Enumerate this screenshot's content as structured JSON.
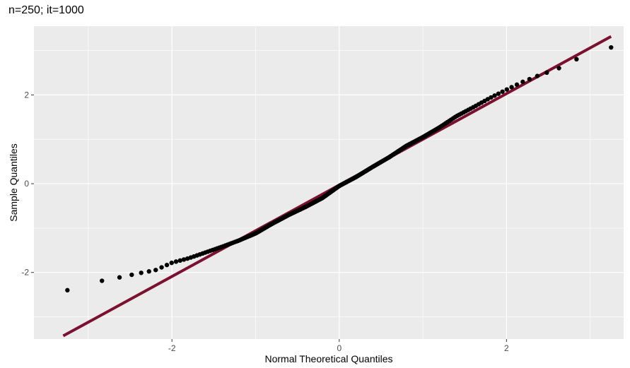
{
  "chart_data": {
    "type": "scatter",
    "title": "n=250; it=1000",
    "xlabel": "Normal Theoretical Quantiles",
    "ylabel": "Sample Quantiles",
    "xlim": [
      -3.65,
      3.4
    ],
    "ylim": [
      -3.5,
      3.55
    ],
    "x_major_ticks": [
      -2,
      0,
      2
    ],
    "y_major_ticks": [
      -2,
      0,
      2
    ],
    "x_minor_ticks": [
      -3,
      -1,
      1,
      3
    ],
    "y_minor_ticks": [
      -3,
      -1,
      1,
      3
    ],
    "x_tick_labels": [
      "-2",
      "0",
      "2"
    ],
    "y_tick_labels": [
      "-2",
      "0",
      "2"
    ],
    "grid": true,
    "reference_line": {
      "intercept": -0.03,
      "slope": 1.03,
      "x_range": [
        -3.3,
        3.25
      ],
      "color": "#7b1030"
    },
    "points_anchor": {
      "x": [
        -3.3,
        -3.0,
        -2.8,
        -2.6,
        -2.4,
        -2.2,
        -2.0,
        -1.8,
        -1.6,
        -1.4,
        -1.2,
        -1.0,
        -0.8,
        -0.6,
        -0.4,
        -0.2,
        0.0,
        0.2,
        0.4,
        0.6,
        0.8,
        1.0,
        1.2,
        1.4,
        1.6,
        1.8,
        2.0,
        2.2,
        2.4,
        2.6,
        2.8,
        3.0,
        3.25
      ],
      "y": [
        -2.4,
        -2.22,
        -2.18,
        -2.1,
        -2.02,
        -1.95,
        -1.78,
        -1.68,
        -1.55,
        -1.42,
        -1.28,
        -1.12,
        -0.9,
        -0.7,
        -0.52,
        -0.32,
        -0.05,
        0.15,
        0.38,
        0.6,
        0.85,
        1.05,
        1.27,
        1.52,
        1.72,
        1.93,
        2.12,
        2.3,
        2.45,
        2.58,
        2.75,
        3.05,
        3.07
      ]
    },
    "point_count": 250,
    "point_color": "#000000",
    "panel_background": "#ebebeb",
    "grid_color": "#ffffff"
  }
}
